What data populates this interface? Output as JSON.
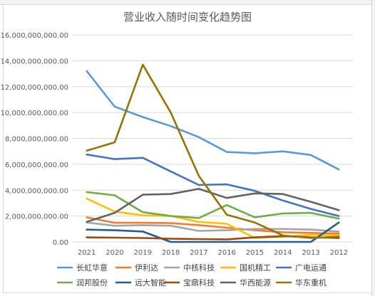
{
  "chart_data": {
    "type": "line",
    "title": "营业收入随时间变化趋势图",
    "xlabel": "",
    "ylabel": "",
    "ylim": [
      0,
      16000000000
    ],
    "y_ticks": [
      0,
      2000000000,
      4000000000,
      6000000000,
      8000000000,
      10000000000,
      12000000000,
      14000000000,
      16000000000
    ],
    "y_tick_labels": [
      "0.00",
      "2,000,000,000.00",
      "4,000,000,000.00",
      "6,000,000,000.00",
      "8,000,000,000.00",
      "10,000,000,000.00",
      "12,000,000,000.00",
      "14,000,000,000.00",
      "16,000,000,000.00"
    ],
    "categories": [
      "2021",
      "2020",
      "2019",
      "2018",
      "2017",
      "2016",
      "2015",
      "2014",
      "2013",
      "2012"
    ],
    "grid": true,
    "legend_position": "bottom",
    "series": [
      {
        "name": "长虹华意",
        "color": "#5b9bd5",
        "values": [
          13200000000,
          10450000000,
          9650000000,
          8950000000,
          8100000000,
          6950000000,
          6850000000,
          7000000000,
          6720000000,
          5600000000
        ]
      },
      {
        "name": "伊利达",
        "color": "#ed7d31",
        "values": [
          1900000000,
          1480000000,
          1480000000,
          1450000000,
          1300000000,
          1100000000,
          900000000,
          750000000,
          700000000,
          650000000
        ]
      },
      {
        "name": "中核科技",
        "color": "#a5a5a5",
        "values": [
          1500000000,
          1250000000,
          1300000000,
          1250000000,
          850000000,
          900000000,
          1000000000,
          1000000000,
          950000000,
          800000000
        ]
      },
      {
        "name": "国机精工",
        "color": "#ffc000",
        "values": [
          3350000000,
          2350000000,
          2050000000,
          2000000000,
          1550000000,
          1400000000,
          300000000,
          400000000,
          550000000,
          500000000
        ]
      },
      {
        "name": "广电运通",
        "color": "#4472c4",
        "values": [
          6750000000,
          6400000000,
          6500000000,
          5450000000,
          4400000000,
          4450000000,
          3950000000,
          3200000000,
          2550000000,
          2000000000
        ]
      },
      {
        "name": "润邦股份",
        "color": "#70ad47",
        "values": [
          3850000000,
          3600000000,
          2300000000,
          2000000000,
          1850000000,
          2850000000,
          1900000000,
          2200000000,
          2250000000,
          1800000000
        ]
      },
      {
        "name": "远大智能",
        "color": "#255e91",
        "values": [
          950000000,
          900000000,
          800000000,
          0,
          0,
          0,
          0,
          0,
          0,
          1500000000
        ]
      },
      {
        "name": "宝鼎科技",
        "color": "#9e480e",
        "values": [
          350000000,
          330000000,
          300000000,
          250000000,
          220000000,
          200000000,
          350000000,
          450000000,
          350000000,
          300000000
        ]
      },
      {
        "name": "华西能源",
        "color": "#636363",
        "values": [
          1550000000,
          2250000000,
          3650000000,
          3700000000,
          4100000000,
          3400000000,
          3750000000,
          3700000000,
          3100000000,
          2450000000
        ]
      },
      {
        "name": "华东重机",
        "color": "#997300",
        "values": [
          7050000000,
          7700000000,
          13700000000,
          10000000000,
          5100000000,
          2100000000,
          1500000000,
          500000000,
          300000000,
          400000000
        ]
      }
    ]
  }
}
